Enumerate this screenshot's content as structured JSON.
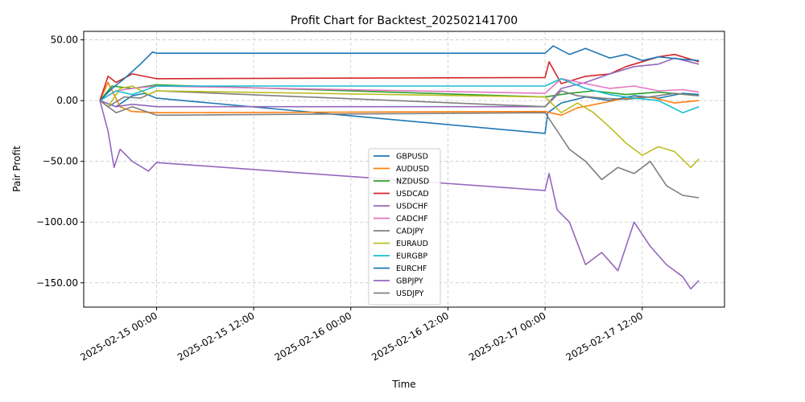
{
  "chart_data": {
    "type": "line",
    "title": "Profit Chart for Backtest_202502141700",
    "xlabel": "Time",
    "ylabel": "Pair Profit",
    "xlim": [
      "2025-02-14 15:00",
      "2025-02-17 22:10"
    ],
    "ylim": [
      -170,
      57
    ],
    "grid": true,
    "legend_position": "center-bottom",
    "x_ticks": [
      "2025-02-15 00:00",
      "2025-02-15 12:00",
      "2025-02-16 00:00",
      "2025-02-16 12:00",
      "2025-02-17 00:00",
      "2025-02-17 12:00"
    ],
    "y_ticks": [
      50,
      0,
      -50,
      -100,
      -150
    ],
    "y_tick_labels": [
      "50.00",
      "0.00",
      "−50.00",
      "−100.00",
      "−150.00"
    ],
    "series": [
      {
        "name": "GBPUSD",
        "color": "#1f77b4",
        "points": [
          [
            "2025-02-14 17:00",
            0
          ],
          [
            "2025-02-14 19:00",
            -5
          ],
          [
            "2025-02-14 21:00",
            4
          ],
          [
            "2025-02-14 22:30",
            6
          ],
          [
            "2025-02-15 00:00",
            2
          ],
          [
            "2025-02-17 00:00",
            -27
          ],
          [
            "2025-02-17 00:20",
            -10
          ],
          [
            "2025-02-17 02:00",
            -2
          ],
          [
            "2025-02-17 05:00",
            3
          ],
          [
            "2025-02-17 08:00",
            0
          ],
          [
            "2025-02-17 11:00",
            4
          ],
          [
            "2025-02-17 14:00",
            2
          ],
          [
            "2025-02-17 17:00",
            6
          ],
          [
            "2025-02-17 19:00",
            5
          ]
        ]
      },
      {
        "name": "AUDUSD",
        "color": "#ff7f0e",
        "points": [
          [
            "2025-02-14 17:00",
            0
          ],
          [
            "2025-02-14 18:00",
            15
          ],
          [
            "2025-02-14 19:30",
            -5
          ],
          [
            "2025-02-14 21:00",
            -9
          ],
          [
            "2025-02-15 00:00",
            -10
          ],
          [
            "2025-02-17 00:00",
            -9
          ],
          [
            "2025-02-17 02:00",
            -12
          ],
          [
            "2025-02-17 04:00",
            -6
          ],
          [
            "2025-02-17 07:00",
            -2
          ],
          [
            "2025-02-17 10:00",
            2
          ],
          [
            "2025-02-17 13:00",
            3
          ],
          [
            "2025-02-17 16:00",
            -2
          ],
          [
            "2025-02-17 19:00",
            0
          ]
        ]
      },
      {
        "name": "NZDUSD",
        "color": "#2ca02c",
        "points": [
          [
            "2025-02-14 17:00",
            0
          ],
          [
            "2025-02-14 18:30",
            12
          ],
          [
            "2025-02-14 21:00",
            10
          ],
          [
            "2025-02-15 00:00",
            13
          ],
          [
            "2025-02-17 00:00",
            3
          ],
          [
            "2025-02-17 03:00",
            6
          ],
          [
            "2025-02-17 06:00",
            8
          ],
          [
            "2025-02-17 10:00",
            5
          ],
          [
            "2025-02-17 14:00",
            7
          ],
          [
            "2025-02-17 19:00",
            4
          ]
        ]
      },
      {
        "name": "USDCAD",
        "color": "#d62728",
        "points": [
          [
            "2025-02-14 17:00",
            0
          ],
          [
            "2025-02-14 18:00",
            20
          ],
          [
            "2025-02-14 19:00",
            15
          ],
          [
            "2025-02-14 21:00",
            22
          ],
          [
            "2025-02-15 00:00",
            18
          ],
          [
            "2025-02-17 00:00",
            19
          ],
          [
            "2025-02-17 00:30",
            32
          ],
          [
            "2025-02-17 02:00",
            14
          ],
          [
            "2025-02-17 05:00",
            20
          ],
          [
            "2025-02-17 08:00",
            22
          ],
          [
            "2025-02-17 10:00",
            28
          ],
          [
            "2025-02-17 12:00",
            32
          ],
          [
            "2025-02-17 14:00",
            36
          ],
          [
            "2025-02-17 16:00",
            38
          ],
          [
            "2025-02-17 19:00",
            32
          ]
        ]
      },
      {
        "name": "USDCHF",
        "color": "#9467bd",
        "points": [
          [
            "2025-02-14 17:00",
            0
          ],
          [
            "2025-02-14 19:00",
            -5
          ],
          [
            "2025-02-14 21:00",
            -3
          ],
          [
            "2025-02-15 00:00",
            -5
          ],
          [
            "2025-02-17 00:00",
            -5
          ],
          [
            "2025-02-17 02:00",
            10
          ],
          [
            "2025-02-17 05:00",
            15
          ],
          [
            "2025-02-17 08:00",
            22
          ],
          [
            "2025-02-17 11:00",
            28
          ],
          [
            "2025-02-17 14:00",
            30
          ],
          [
            "2025-02-17 16:00",
            35
          ],
          [
            "2025-02-17 19:00",
            30
          ]
        ]
      },
      {
        "name": "CADCHF",
        "color": "#e377c2",
        "points": [
          [
            "2025-02-14 17:00",
            0
          ],
          [
            "2025-02-14 19:00",
            8
          ],
          [
            "2025-02-14 21:00",
            10
          ],
          [
            "2025-02-15 00:00",
            12
          ],
          [
            "2025-02-17 00:00",
            6
          ],
          [
            "2025-02-17 02:00",
            18
          ],
          [
            "2025-02-17 05:00",
            14
          ],
          [
            "2025-02-17 08:00",
            10
          ],
          [
            "2025-02-17 11:00",
            12
          ],
          [
            "2025-02-17 14:00",
            8
          ],
          [
            "2025-02-17 17:00",
            9
          ],
          [
            "2025-02-17 19:00",
            7
          ]
        ]
      },
      {
        "name": "CADJPY",
        "color": "#7f7f7f",
        "points": [
          [
            "2025-02-14 17:00",
            0
          ],
          [
            "2025-02-14 18:00",
            -5
          ],
          [
            "2025-02-14 20:00",
            3
          ],
          [
            "2025-02-14 22:00",
            2
          ],
          [
            "2025-02-15 00:00",
            8
          ],
          [
            "2025-02-17 00:00",
            -5
          ],
          [
            "2025-02-17 02:00",
            8
          ],
          [
            "2025-02-17 04:00",
            4
          ],
          [
            "2025-02-17 07:00",
            2
          ],
          [
            "2025-02-17 10:00",
            1
          ],
          [
            "2025-02-17 13:00",
            3
          ],
          [
            "2025-02-17 16:00",
            6
          ],
          [
            "2025-02-17 19:00",
            4
          ]
        ]
      },
      {
        "name": "EURAUD",
        "color": "#bcbd22",
        "points": [
          [
            "2025-02-14 17:00",
            0
          ],
          [
            "2025-02-14 18:00",
            -5
          ],
          [
            "2025-02-14 19:30",
            10
          ],
          [
            "2025-02-14 21:00",
            12
          ],
          [
            "2025-02-14 23:00",
            5
          ],
          [
            "2025-02-15 00:00",
            8
          ],
          [
            "2025-02-17 00:00",
            3
          ],
          [
            "2025-02-17 02:00",
            -10
          ],
          [
            "2025-02-17 04:00",
            -2
          ],
          [
            "2025-02-17 06:00",
            -10
          ],
          [
            "2025-02-17 08:00",
            -22
          ],
          [
            "2025-02-17 10:00",
            -35
          ],
          [
            "2025-02-17 12:00",
            -45
          ],
          [
            "2025-02-17 14:00",
            -38
          ],
          [
            "2025-02-17 16:00",
            -42
          ],
          [
            "2025-02-17 18:00",
            -55
          ],
          [
            "2025-02-17 19:00",
            -48
          ]
        ]
      },
      {
        "name": "EURGBP",
        "color": "#17becf",
        "points": [
          [
            "2025-02-14 17:00",
            0
          ],
          [
            "2025-02-14 19:00",
            8
          ],
          [
            "2025-02-14 21:00",
            5
          ],
          [
            "2025-02-15 00:00",
            12
          ],
          [
            "2025-02-17 00:00",
            12
          ],
          [
            "2025-02-17 02:00",
            18
          ],
          [
            "2025-02-17 05:00",
            10
          ],
          [
            "2025-02-17 08:00",
            5
          ],
          [
            "2025-02-17 11:00",
            2
          ],
          [
            "2025-02-17 14:00",
            0
          ],
          [
            "2025-02-17 17:00",
            -10
          ],
          [
            "2025-02-17 19:00",
            -5
          ]
        ]
      },
      {
        "name": "EURCHF",
        "color": "#1f77b4",
        "points": [
          [
            "2025-02-14 17:00",
            0
          ],
          [
            "2025-02-14 18:30",
            10
          ],
          [
            "2025-02-14 20:00",
            18
          ],
          [
            "2025-02-14 22:00",
            30
          ],
          [
            "2025-02-14 23:30",
            40
          ],
          [
            "2025-02-15 00:00",
            39
          ],
          [
            "2025-02-17 00:00",
            39
          ],
          [
            "2025-02-17 01:00",
            45
          ],
          [
            "2025-02-17 03:00",
            38
          ],
          [
            "2025-02-17 05:00",
            43
          ],
          [
            "2025-02-17 08:00",
            35
          ],
          [
            "2025-02-17 10:00",
            38
          ],
          [
            "2025-02-17 12:00",
            33
          ],
          [
            "2025-02-17 14:00",
            36
          ],
          [
            "2025-02-17 17:00",
            34
          ],
          [
            "2025-02-17 19:00",
            33
          ]
        ]
      },
      {
        "name": "GBPJPY",
        "color": "#9467bd",
        "points": [
          [
            "2025-02-14 17:00",
            0
          ],
          [
            "2025-02-14 18:00",
            -25
          ],
          [
            "2025-02-14 18:45",
            -55
          ],
          [
            "2025-02-14 19:30",
            -40
          ],
          [
            "2025-02-14 21:00",
            -50
          ],
          [
            "2025-02-14 23:00",
            -58
          ],
          [
            "2025-02-15 00:00",
            -51
          ],
          [
            "2025-02-17 00:00",
            -74
          ],
          [
            "2025-02-17 00:30",
            -60
          ],
          [
            "2025-02-17 01:30",
            -90
          ],
          [
            "2025-02-17 03:00",
            -100
          ],
          [
            "2025-02-17 05:00",
            -135
          ],
          [
            "2025-02-17 07:00",
            -125
          ],
          [
            "2025-02-17 09:00",
            -140
          ],
          [
            "2025-02-17 11:00",
            -100
          ],
          [
            "2025-02-17 13:00",
            -120
          ],
          [
            "2025-02-17 15:00",
            -135
          ],
          [
            "2025-02-17 17:00",
            -145
          ],
          [
            "2025-02-17 18:00",
            -155
          ],
          [
            "2025-02-17 19:00",
            -148
          ]
        ]
      },
      {
        "name": "USDJPY",
        "color": "#7f7f7f",
        "points": [
          [
            "2025-02-14 17:00",
            0
          ],
          [
            "2025-02-14 19:00",
            -10
          ],
          [
            "2025-02-14 21:00",
            -5
          ],
          [
            "2025-02-15 00:00",
            -12
          ],
          [
            "2025-02-17 00:00",
            -10
          ],
          [
            "2025-02-17 01:00",
            -20
          ],
          [
            "2025-02-17 03:00",
            -40
          ],
          [
            "2025-02-17 05:00",
            -50
          ],
          [
            "2025-02-17 07:00",
            -65
          ],
          [
            "2025-02-17 09:00",
            -55
          ],
          [
            "2025-02-17 11:00",
            -60
          ],
          [
            "2025-02-17 13:00",
            -50
          ],
          [
            "2025-02-17 15:00",
            -70
          ],
          [
            "2025-02-17 17:00",
            -78
          ],
          [
            "2025-02-17 19:00",
            -80
          ]
        ]
      }
    ]
  }
}
